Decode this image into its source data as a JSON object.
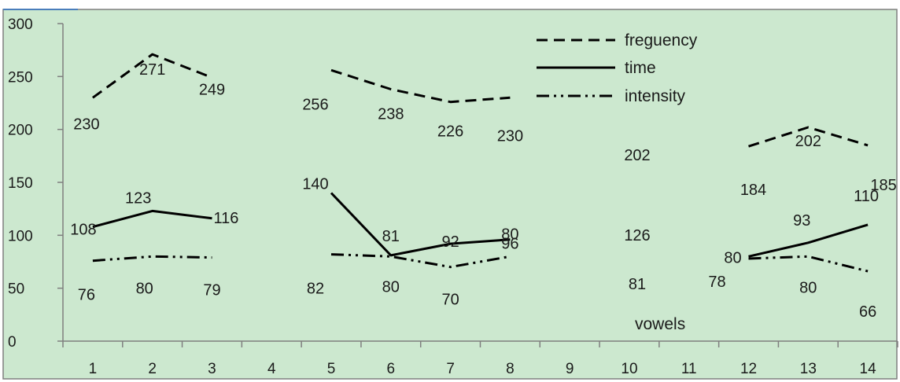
{
  "chart_data": {
    "type": "line",
    "xlabel": "vowels",
    "ylabel": "",
    "ylim": [
      0,
      300
    ],
    "yticks": [
      "0",
      "50",
      "100",
      "150",
      "200",
      "250",
      "300"
    ],
    "categories": [
      "1",
      "2",
      "3",
      "4",
      "5",
      "6",
      "7",
      "8",
      "9",
      "10",
      "11",
      "12",
      "13",
      "14"
    ],
    "grid": false,
    "legend_position": "top-right",
    "series": [
      {
        "name": "freguency",
        "dash": "dashed",
        "values": [
          230,
          271,
          249,
          null,
          256,
          238,
          226,
          230,
          null,
          null,
          null,
          184,
          202,
          185
        ]
      },
      {
        "name": "time",
        "dash": "solid",
        "values": [
          108,
          123,
          116,
          null,
          140,
          81,
          92,
          96,
          null,
          null,
          null,
          80,
          93,
          110
        ]
      },
      {
        "name": "intensity",
        "dash": "dashdot",
        "values": [
          76,
          80,
          79,
          null,
          82,
          80,
          70,
          80,
          null,
          null,
          null,
          78,
          80,
          66
        ]
      }
    ],
    "data_labels": [
      {
        "text": "230",
        "series": "freguency",
        "x": "1"
      },
      {
        "text": "271",
        "series": "freguency",
        "x": "2"
      },
      {
        "text": "249",
        "series": "freguency",
        "x": "3"
      },
      {
        "text": "256",
        "series": "freguency",
        "x": "5"
      },
      {
        "text": "238",
        "series": "freguency",
        "x": "6"
      },
      {
        "text": "226",
        "series": "freguency",
        "x": "7"
      },
      {
        "text": "230",
        "series": "freguency",
        "x": "8"
      },
      {
        "text": "202",
        "series": "freguency",
        "x": "10"
      },
      {
        "text": "184",
        "series": "freguency",
        "x": "12"
      },
      {
        "text": "202",
        "series": "freguency",
        "x": "13"
      },
      {
        "text": "185",
        "series": "freguency",
        "x": "14"
      },
      {
        "text": "108",
        "series": "time",
        "x": "1"
      },
      {
        "text": "123",
        "series": "time",
        "x": "2"
      },
      {
        "text": "116",
        "series": "time",
        "x": "3"
      },
      {
        "text": "140",
        "series": "time",
        "x": "5"
      },
      {
        "text": "81",
        "series": "time",
        "x": "6"
      },
      {
        "text": "92",
        "series": "time",
        "x": "7"
      },
      {
        "text": "80",
        "series": "time",
        "x": "8"
      },
      {
        "text": "126",
        "series": "time",
        "x": "10"
      },
      {
        "text": "80",
        "series": "time",
        "x": "12"
      },
      {
        "text": "93",
        "series": "time",
        "x": "13"
      },
      {
        "text": "110",
        "series": "time",
        "x": "14"
      },
      {
        "text": "76",
        "series": "intensity",
        "x": "1"
      },
      {
        "text": "80",
        "series": "intensity",
        "x": "2"
      },
      {
        "text": "79",
        "series": "intensity",
        "x": "3"
      },
      {
        "text": "82",
        "series": "intensity",
        "x": "5"
      },
      {
        "text": "80",
        "series": "intensity",
        "x": "6"
      },
      {
        "text": "70",
        "series": "intensity",
        "x": "7"
      },
      {
        "text": "96",
        "series": "intensity",
        "x": "8"
      },
      {
        "text": "81",
        "series": "intensity",
        "x": "10"
      },
      {
        "text": "78",
        "series": "intensity",
        "x": "12"
      },
      {
        "text": "80",
        "series": "intensity",
        "x": "13"
      },
      {
        "text": "66",
        "series": "intensity",
        "x": "14"
      }
    ]
  },
  "colors": {
    "plot_background": "#cce8cf",
    "line": "#000000",
    "axis": "#7f7f7f",
    "border": "#7f7f7f"
  }
}
